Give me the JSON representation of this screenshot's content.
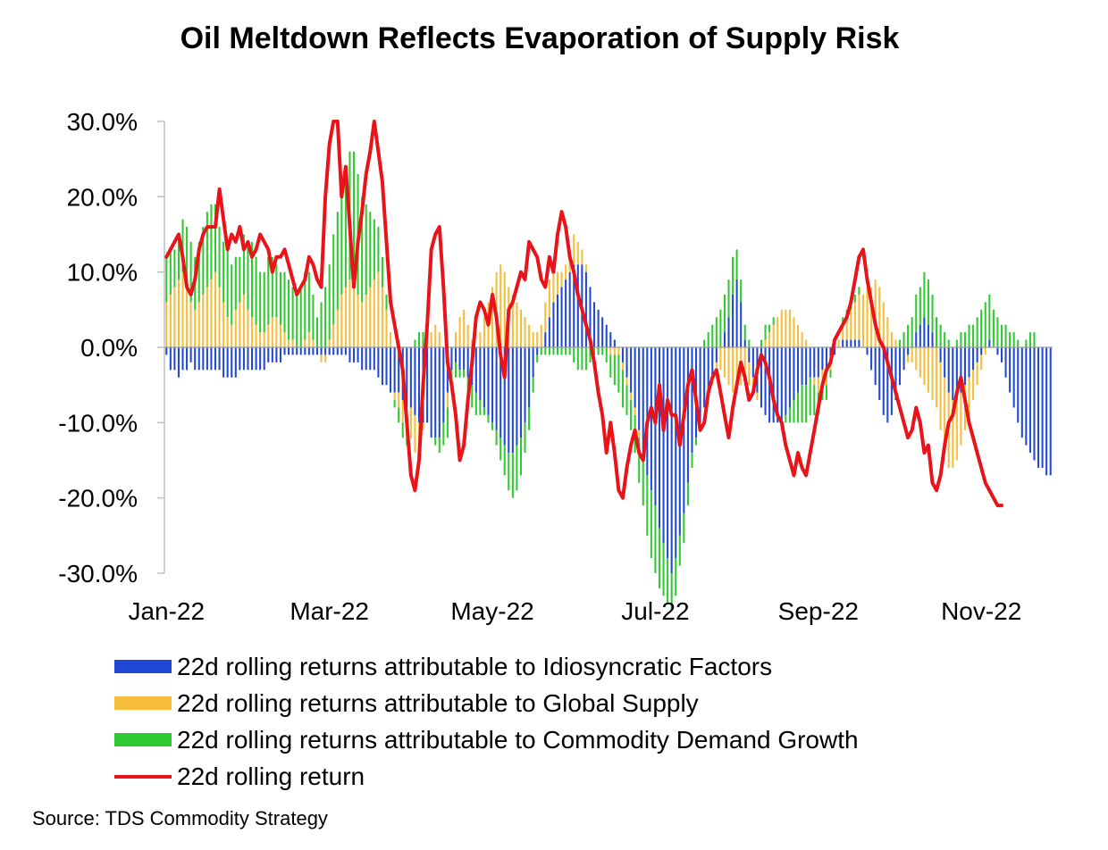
{
  "colors": {
    "idiosyncratic": "#1f48d6",
    "supply": "#f7bd3a",
    "demand": "#2fc930",
    "total": "#e8141a",
    "axis": "#bfbfbf"
  },
  "chart_data": {
    "type": "bar",
    "title": "Oil Meltdown Reflects Evaporation of Supply Risk",
    "stacked": true,
    "ylim": [
      -30,
      30
    ],
    "y_ticks": [
      30,
      20,
      10,
      0,
      -10,
      -20,
      -30
    ],
    "y_tick_labels": [
      "30.0%",
      "20.0%",
      "10.0%",
      "0.0%",
      "-10.0%",
      "-20.0%",
      "-30.0%"
    ],
    "x_tick_labels": [
      "Jan-22",
      "Mar-22",
      "May-22",
      "Jul-22",
      "Sep-22",
      "Nov-22"
    ],
    "x_tick_index": [
      0,
      40,
      80,
      120,
      160,
      200
    ],
    "grid": false,
    "legend_position": "bottom",
    "series": [
      {
        "name": "22d rolling returns attributable to Idiosyncratic Factors",
        "kind": "bar",
        "color_key": "idiosyncratic",
        "values": [
          -1,
          -3,
          -3,
          -4,
          -3,
          -3,
          -2,
          -3,
          -3,
          -3,
          -3,
          -3,
          -3,
          -3,
          -4,
          -4,
          -4,
          -4,
          -3,
          -3,
          -3,
          -3,
          -3,
          -3,
          -3,
          -2,
          -2,
          -2,
          -2,
          -1,
          -1,
          -1,
          -1,
          -1,
          -1,
          -1,
          -1,
          -1,
          -1,
          -1,
          -1,
          -1,
          -1,
          -1,
          -1,
          -2,
          -2,
          -2,
          -3,
          -3,
          -3,
          -3,
          -4,
          -5,
          -5,
          -6,
          -6,
          -6,
          -7,
          -8,
          -8,
          -9,
          -10,
          -10,
          -10,
          -12,
          -12,
          -12,
          -10,
          -6,
          -3,
          -2,
          -3,
          -3,
          -4,
          -5,
          -6,
          -7,
          -8,
          -9,
          -10,
          -11,
          -12,
          -13,
          -14,
          -14,
          -13,
          -12,
          -10,
          -8,
          -4,
          -1,
          0,
          2,
          4,
          6,
          7,
          8,
          9,
          10,
          11,
          11,
          11,
          10,
          8,
          6,
          5,
          4,
          3,
          2,
          1,
          0,
          -2,
          -4,
          -6,
          -8,
          -11,
          -14,
          -17,
          -19,
          -21,
          -24,
          -26,
          -28,
          -30,
          -28,
          -25,
          -22,
          -18,
          -14,
          -12,
          -10,
          -8,
          -6,
          -4,
          -2,
          0,
          2,
          4,
          7,
          9,
          6,
          1,
          -2,
          -4,
          -6,
          -8,
          -9,
          -10,
          -10,
          -10,
          -10,
          -9,
          -8,
          -7,
          -6,
          -5,
          -5,
          -4,
          -4,
          -4,
          -3,
          -3,
          -2,
          -1,
          0,
          1,
          1,
          1,
          1,
          1,
          0,
          -1,
          -3,
          -5,
          -7,
          -9,
          -10,
          -9,
          -7,
          -5,
          -3,
          -1,
          0,
          2,
          3,
          4,
          3,
          2,
          0,
          -2,
          -4,
          -6,
          -7,
          -7,
          -6,
          -5,
          -4,
          -3,
          -2,
          -1,
          0,
          1,
          0,
          -1,
          -2,
          -4,
          -6,
          -8,
          -10,
          -12,
          -13,
          -14,
          -15,
          -16,
          -16,
          -17,
          -17
        ]
      },
      {
        "name": "22d rolling returns attributable to Global Supply",
        "kind": "bar",
        "color_key": "supply",
        "values": [
          6,
          7,
          8,
          9,
          10,
          8,
          6,
          5,
          6,
          7,
          8,
          9,
          10,
          8,
          6,
          4,
          3,
          5,
          6,
          7,
          5,
          4,
          3,
          2,
          2,
          3,
          4,
          4,
          3,
          2,
          1,
          1,
          0,
          0,
          1,
          2,
          1,
          0,
          -1,
          -1,
          1,
          3,
          5,
          7,
          8,
          9,
          8,
          7,
          6,
          7,
          8,
          9,
          10,
          8,
          5,
          2,
          -1,
          -2,
          -3,
          -4,
          -4,
          -5,
          -3,
          -1,
          1,
          2,
          3,
          2,
          0,
          -2,
          0,
          2,
          4,
          5,
          3,
          1,
          0,
          2,
          4,
          6,
          8,
          10,
          11,
          10,
          8,
          7,
          6,
          5,
          4,
          3,
          2,
          2,
          3,
          4,
          5,
          4,
          3,
          2,
          2,
          3,
          4,
          3,
          2,
          1,
          0,
          0,
          0,
          0,
          0,
          -1,
          -1,
          -1,
          -1,
          -1,
          -1,
          -1,
          -1,
          0,
          0,
          0,
          0,
          0,
          0,
          0,
          0,
          0,
          0,
          0,
          0,
          0,
          0,
          0,
          0,
          0,
          -1,
          -2,
          -3,
          -4,
          -5,
          -6,
          -6,
          -5,
          -4,
          -3,
          -2,
          -1,
          0,
          1,
          2,
          3,
          4,
          5,
          5,
          5,
          4,
          3,
          2,
          1,
          0,
          -1,
          -2,
          -2,
          -2,
          -1,
          0,
          1,
          2,
          3,
          4,
          5,
          6,
          7,
          8,
          8,
          9,
          8,
          6,
          4,
          2,
          1,
          0,
          0,
          -1,
          -2,
          -3,
          -4,
          -5,
          -6,
          -7,
          -8,
          -9,
          -10,
          -10,
          -9,
          -8,
          -7,
          -6,
          -5,
          -4,
          -3,
          -2,
          -1,
          0
        ]
      },
      {
        "name": "22d rolling returns attributable to Commodity Demand Growth",
        "kind": "bar",
        "color_key": "demand",
        "values": [
          6,
          6,
          5,
          6,
          7,
          8,
          8,
          7,
          8,
          9,
          10,
          10,
          9,
          8,
          8,
          9,
          8,
          7,
          6,
          8,
          9,
          10,
          9,
          8,
          8,
          9,
          8,
          7,
          7,
          8,
          8,
          7,
          7,
          8,
          9,
          8,
          6,
          4,
          6,
          8,
          10,
          12,
          13,
          14,
          16,
          17,
          18,
          16,
          14,
          12,
          10,
          8,
          6,
          4,
          2,
          0,
          -1,
          -2,
          -2,
          -1,
          0,
          1,
          2,
          2,
          1,
          0,
          -1,
          -2,
          -3,
          -4,
          -3,
          -2,
          -1,
          -1,
          -2,
          -3,
          -3,
          -2,
          -1,
          -1,
          -1,
          -2,
          -3,
          -4,
          -5,
          -6,
          -6,
          -5,
          -4,
          -3,
          -2,
          -1,
          -1,
          -1,
          -1,
          -1,
          -1,
          -1,
          -1,
          -1,
          -2,
          -3,
          -3,
          -3,
          -2,
          -1,
          -1,
          -1,
          -2,
          -3,
          -4,
          -5,
          -5,
          -4,
          -4,
          -5,
          -6,
          -7,
          -8,
          -9,
          -9,
          -8,
          -7,
          -6,
          -5,
          -5,
          -4,
          -4,
          -3,
          -2,
          -1,
          0,
          1,
          2,
          3,
          4,
          5,
          5,
          5,
          5,
          4,
          3,
          2,
          1,
          0,
          0,
          1,
          2,
          1,
          1,
          0,
          -1,
          -1,
          -2,
          -3,
          -4,
          -5,
          -5,
          -5,
          -4,
          -3,
          -2,
          -2,
          -1,
          0,
          0,
          1,
          1,
          1,
          1,
          1,
          0,
          0,
          0,
          0,
          0,
          0,
          0,
          0,
          0,
          1,
          2,
          3,
          4,
          5,
          5,
          6,
          6,
          5,
          4,
          3,
          2,
          1,
          0,
          1,
          2,
          2,
          3,
          3,
          4,
          5,
          6,
          6,
          5,
          4,
          3,
          3,
          2,
          2,
          1,
          0,
          1,
          2,
          2
        ]
      },
      {
        "name": "22d rolling return",
        "kind": "line",
        "color_key": "total",
        "values": [
          12,
          13,
          14,
          15,
          12,
          8,
          7,
          9,
          13,
          15,
          16,
          16,
          16,
          21,
          17,
          13,
          15,
          14,
          16,
          13,
          14,
          12,
          13,
          15,
          14,
          13,
          10,
          12,
          12,
          13,
          11,
          9,
          7,
          8,
          9,
          12,
          11,
          9,
          8,
          20,
          27,
          30,
          30,
          20,
          24,
          16,
          8,
          14,
          18,
          23,
          26,
          30,
          26,
          22,
          14,
          6,
          3,
          0,
          -3,
          -10,
          -17,
          -19,
          -15,
          -5,
          3,
          13,
          15,
          16,
          8,
          -2,
          -5,
          -9,
          -15,
          -13,
          -7,
          -2,
          4,
          6,
          5,
          3,
          7,
          4,
          -1,
          -4,
          5,
          6,
          8,
          10,
          9,
          14,
          13,
          12,
          9,
          8,
          12,
          10,
          15,
          18,
          16,
          12,
          10,
          7,
          5,
          3,
          1,
          -2,
          -6,
          -9,
          -14,
          -10,
          -14,
          -19,
          -20,
          -16,
          -13,
          -11,
          -14,
          -15,
          -10,
          -8,
          -10,
          -5,
          -11,
          -7,
          -9,
          -9,
          -13,
          -9,
          -5,
          -3,
          -7,
          -11,
          -10,
          -6,
          -4,
          -3,
          -6,
          -9,
          -12,
          -8,
          -5,
          -2,
          -4,
          -7,
          -6,
          -3,
          -1,
          -2,
          -4,
          -7,
          -9,
          -10,
          -13,
          -15,
          -17,
          -14,
          -16,
          -17,
          -14,
          -11,
          -8,
          -5,
          -3,
          -2,
          1,
          2,
          3,
          4,
          6,
          9,
          12,
          13,
          9,
          6,
          3,
          1,
          0,
          -2,
          -4,
          -6,
          -8,
          -10,
          -12,
          -11,
          -8,
          -10,
          -14,
          -13,
          -18,
          -19,
          -17,
          -13,
          -10,
          -9,
          -6,
          -4,
          -7,
          -10,
          -12,
          -14,
          -16,
          -18,
          -19,
          -20,
          -21,
          -21
        ]
      }
    ]
  },
  "source": "Source: TDS Commodity Strategy"
}
